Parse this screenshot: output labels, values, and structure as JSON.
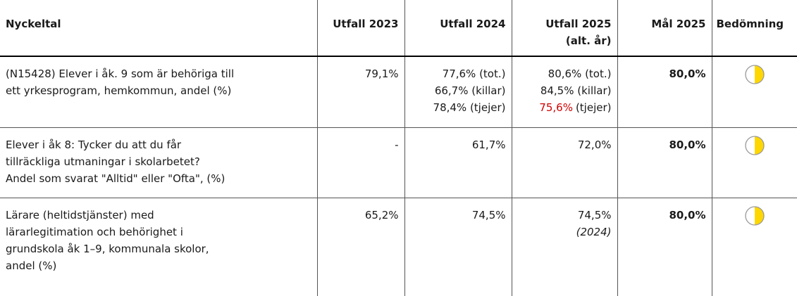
{
  "table": {
    "headers": [
      [
        "Nyckeltal"
      ],
      [
        "Utfall 2023"
      ],
      [
        "Utfall 2024"
      ],
      [
        "Utfall 2025",
        "(alt. år)"
      ],
      [
        "Mål 2025"
      ],
      [
        "Bedömning"
      ]
    ],
    "rows": [
      {
        "indicator": [
          "(N15428) Elever i åk. 9 som är behöriga till",
          "ett yrkesprogram, hemkommun, andel (%)"
        ],
        "utfall_2023": [
          "79,1%"
        ],
        "utfall_2024": [
          "77,6% (tot.)",
          "66,7% (killar)",
          "78,4% (tjejer)"
        ],
        "utfall_2025": [
          "80,6% (tot.)",
          "84,5% (killar)",
          {
            "highlight": "75,6%",
            "text": "(tjejer)"
          }
        ],
        "mal_2025": "80,0%"
      },
      {
        "indicator": [
          "Elever i åk 8: Tycker du att du får",
          "tillräckliga utmaningar i skolarbetet?",
          "Andel som svarat \"Alltid\" eller \"Ofta\", (%)"
        ],
        "utfall_2023": [
          "-"
        ],
        "utfall_2024": [
          "61,7%"
        ],
        "utfall_2025": [
          "72,0%"
        ],
        "mal_2025": "80,0%"
      },
      {
        "indicator": [
          "Lärare (heltidstjänster) med",
          "lärarlegitimation och behörighet i",
          "grundskola åk 1–9, kommunala skolor,",
          "andel (%)"
        ],
        "utfall_2023": [
          "65,2%"
        ],
        "utfall_2024": [
          "74,5%"
        ],
        "utfall_2025": [
          "74,5%",
          {
            "italic": "(2024)"
          }
        ],
        "mal_2025": "80,0%"
      }
    ]
  }
}
